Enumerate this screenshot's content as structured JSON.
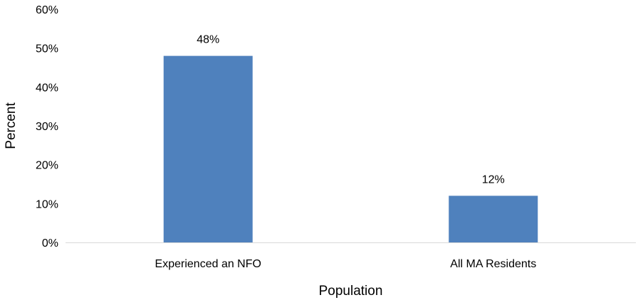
{
  "chart_data": {
    "type": "bar",
    "categories": [
      "Experienced an NFO",
      "All MA Residents"
    ],
    "values": [
      48,
      12
    ],
    "data_labels": [
      "48%",
      "12%"
    ],
    "xlabel": "Population",
    "ylabel": "Percent",
    "ylim": [
      0,
      60
    ],
    "y_ticks": [
      "0%",
      "10%",
      "20%",
      "30%",
      "40%",
      "50%",
      "60%"
    ],
    "grid": false,
    "legend": "none",
    "bar_color": "#4f81bd",
    "axis_color": "#d9d9d9"
  }
}
